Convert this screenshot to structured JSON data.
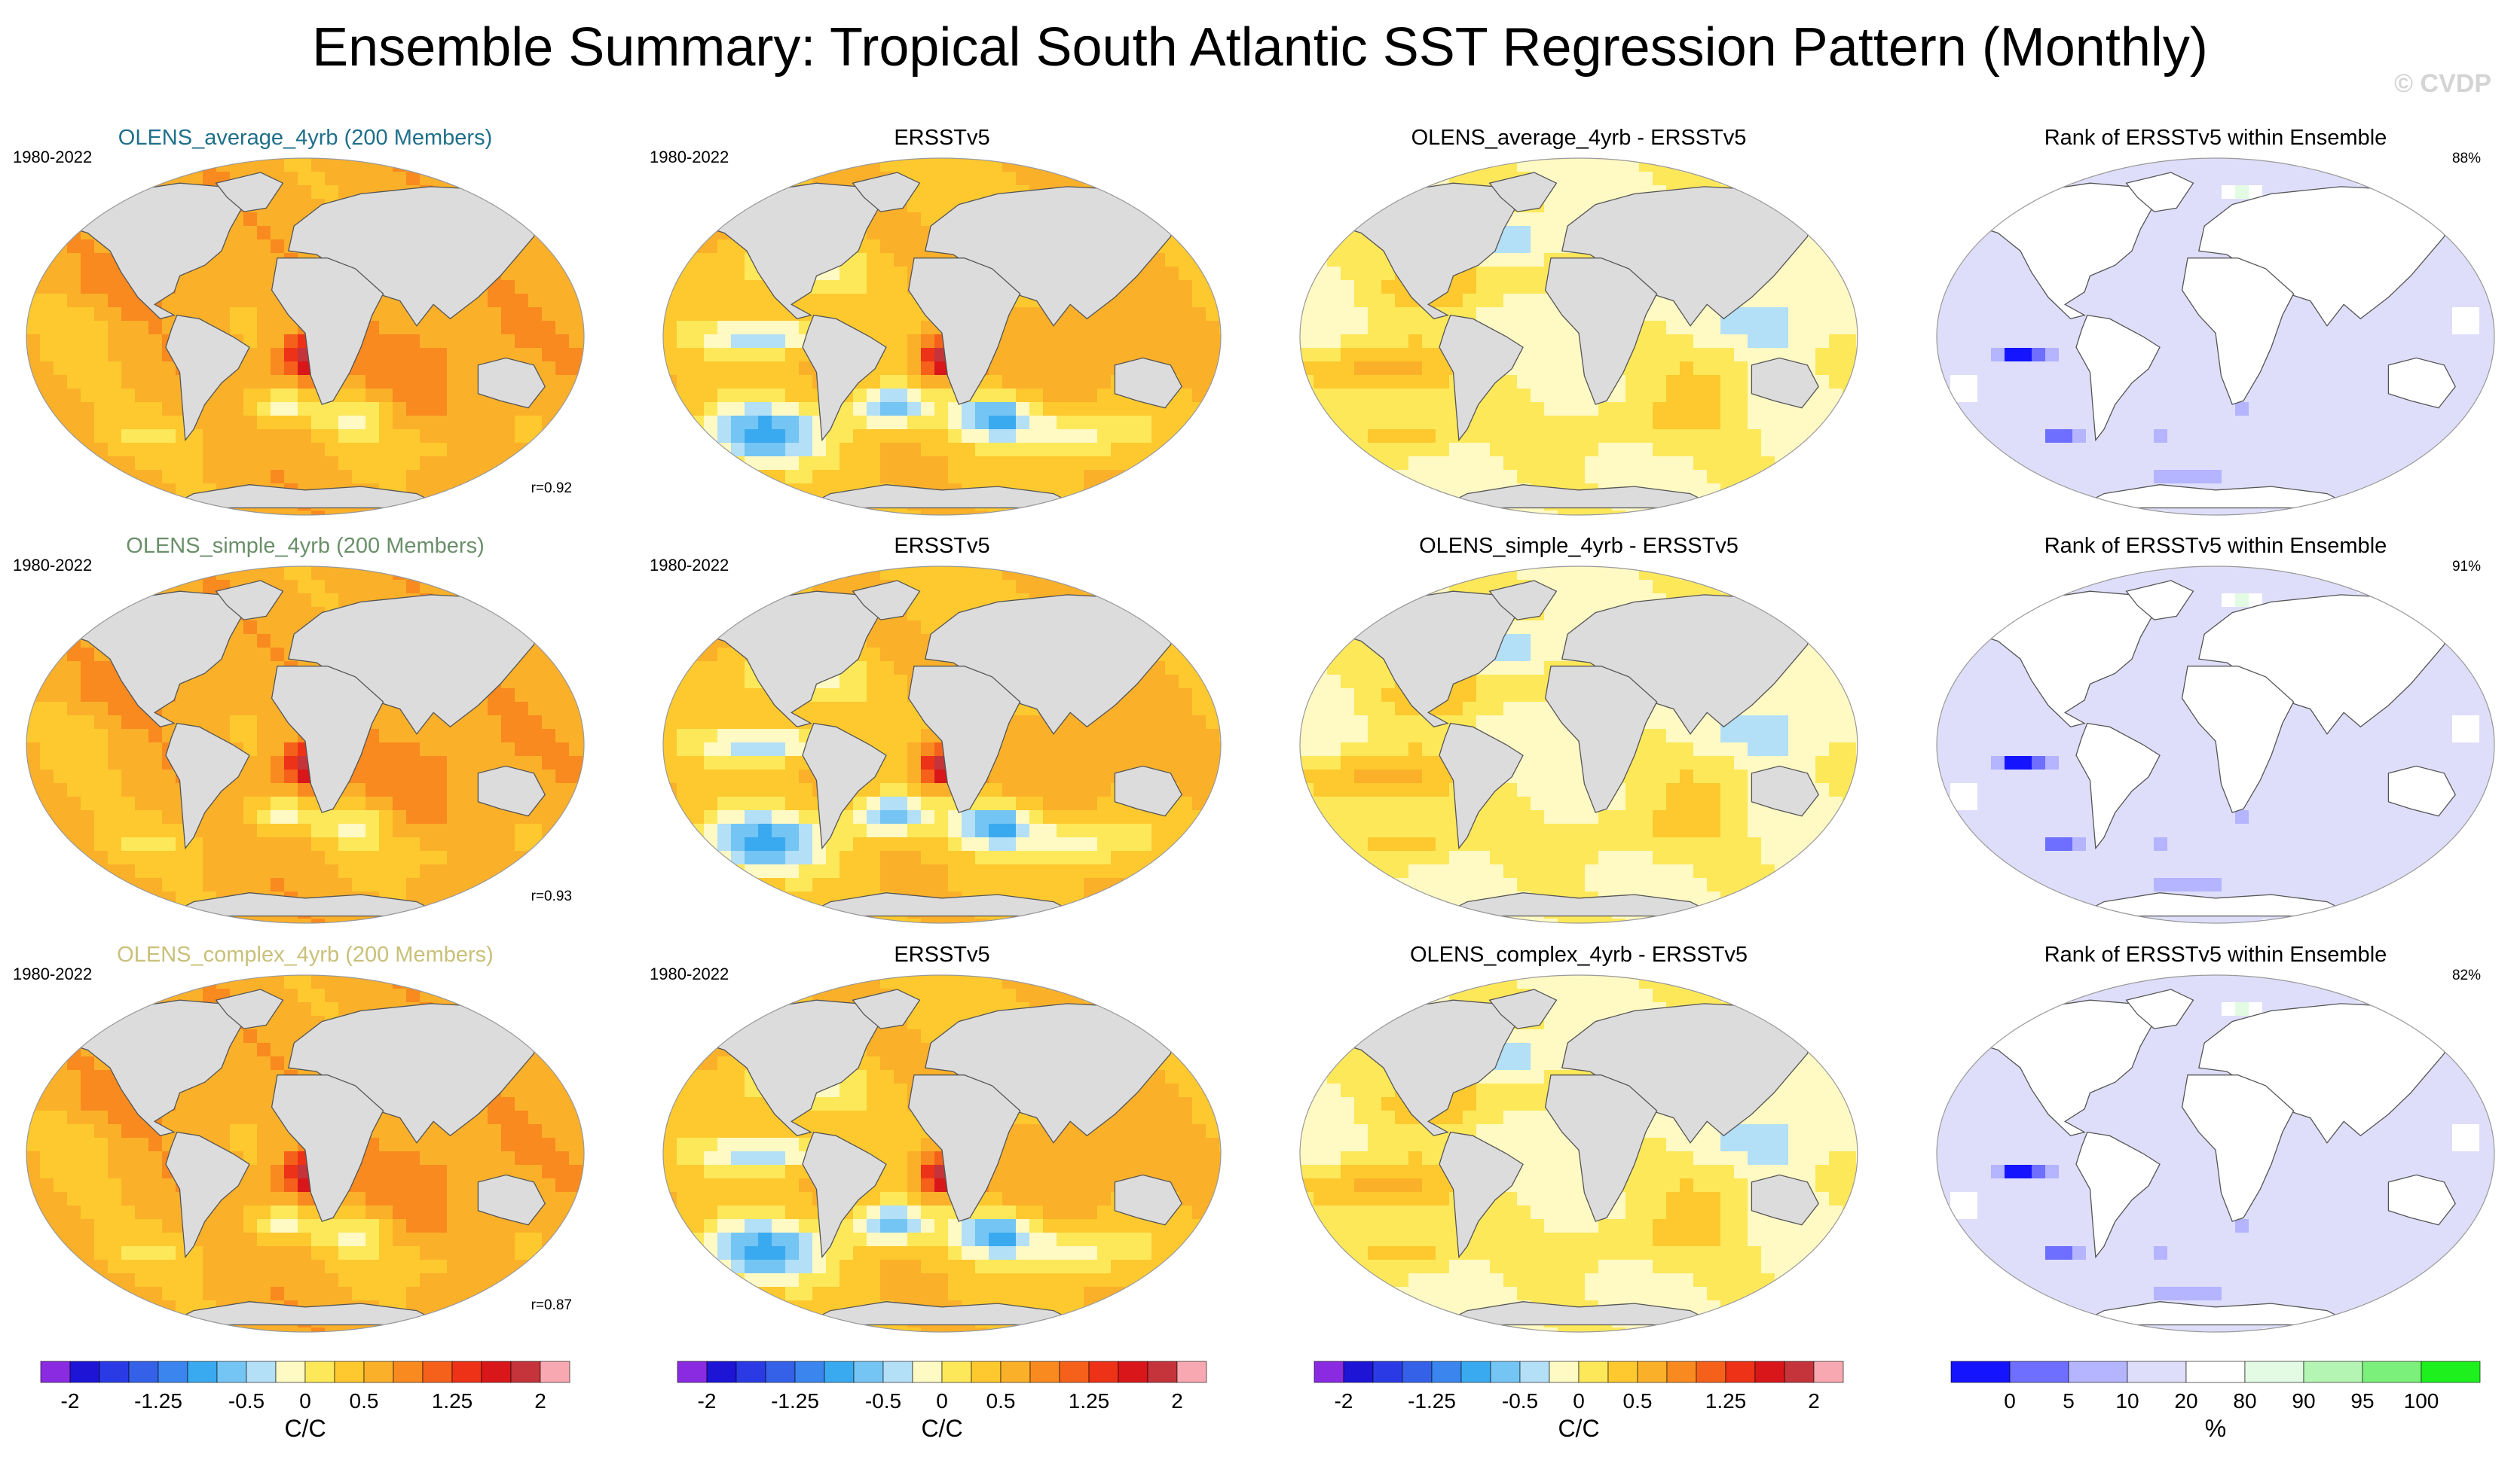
{
  "title": "Ensemble Summary: Tropical South Atlantic SST Regression Pattern (Monthly)",
  "watermark": "© CVDP",
  "chart_data": {
    "type": "heatmap",
    "grid": {
      "rows": 3,
      "columns": 4
    },
    "rows": [
      {
        "panels": [
          {
            "title": "OLENS_average_4yrb (200 Members)",
            "title_color": "#1f6f8b",
            "period": "1980-2022",
            "stat": "r=0.92",
            "kind": "ens",
            "colorbar": "sst"
          },
          {
            "title": "ERSSTv5",
            "title_color": "#000000",
            "period": "1980-2022",
            "stat": "",
            "kind": "obs",
            "colorbar": "sst"
          },
          {
            "title": "OLENS_average_4yrb - ERSSTv5",
            "title_color": "#000000",
            "period": "",
            "stat": "",
            "kind": "diff",
            "colorbar": "sst"
          },
          {
            "title": "Rank of ERSSTv5 within Ensemble",
            "title_color": "#000000",
            "period": "",
            "stat": "88%",
            "kind": "rank",
            "colorbar": "rank"
          }
        ]
      },
      {
        "panels": [
          {
            "title": "OLENS_simple_4yrb (200 Members)",
            "title_color": "#6a8f6a",
            "period": "1980-2022",
            "stat": "r=0.93",
            "kind": "ens",
            "colorbar": "sst"
          },
          {
            "title": "ERSSTv5",
            "title_color": "#000000",
            "period": "1980-2022",
            "stat": "",
            "kind": "obs",
            "colorbar": "sst"
          },
          {
            "title": "OLENS_simple_4yrb - ERSSTv5",
            "title_color": "#000000",
            "period": "",
            "stat": "",
            "kind": "diff",
            "colorbar": "sst"
          },
          {
            "title": "Rank of ERSSTv5 within Ensemble",
            "title_color": "#000000",
            "period": "",
            "stat": "91%",
            "kind": "rank",
            "colorbar": "rank"
          }
        ]
      },
      {
        "panels": [
          {
            "title": "OLENS_complex_4yrb (200 Members)",
            "title_color": "#c9c07a",
            "period": "1980-2022",
            "stat": "r=0.87",
            "kind": "ens",
            "colorbar": "sst"
          },
          {
            "title": "ERSSTv5",
            "title_color": "#000000",
            "period": "1980-2022",
            "stat": "",
            "kind": "obs",
            "colorbar": "sst"
          },
          {
            "title": "OLENS_complex_4yrb - ERSSTv5",
            "title_color": "#000000",
            "period": "",
            "stat": "",
            "kind": "diff",
            "colorbar": "sst"
          },
          {
            "title": "Rank of ERSSTv5 within Ensemble",
            "title_color": "#000000",
            "period": "",
            "stat": "82%",
            "kind": "rank",
            "colorbar": "rank"
          }
        ]
      }
    ],
    "colorbars": {
      "sst": {
        "unit": "C/C",
        "tick_labels": [
          "-2",
          "-1.25",
          "-0.5",
          "0",
          "0.5",
          "1.25",
          "2"
        ],
        "colors": [
          "#8a2be2",
          "#1e14d6",
          "#2a3be6",
          "#3461e8",
          "#3a86ee",
          "#3aaaf0",
          "#74c5f3",
          "#b3dff7",
          "#fff9c4",
          "#fde85a",
          "#fdc92e",
          "#fbb02a",
          "#f98a1f",
          "#f5611a",
          "#ed3217",
          "#d9161a",
          "#c4343a",
          "#f7a8b0"
        ]
      },
      "rank": {
        "unit": "%",
        "tick_labels": [
          "0",
          "5",
          "10",
          "20",
          "80",
          "90",
          "95",
          "100"
        ],
        "colors": [
          "#1414ff",
          "#6e6eff",
          "#b4b4ff",
          "#dedefa",
          "#ffffff",
          "#e2fbe2",
          "#b4f5b4",
          "#7bf07b",
          "#1ef01e"
        ]
      }
    },
    "value_scale": {
      "min": -2,
      "max": 2
    },
    "rank_scale": {
      "min": 0,
      "max": 100
    }
  }
}
